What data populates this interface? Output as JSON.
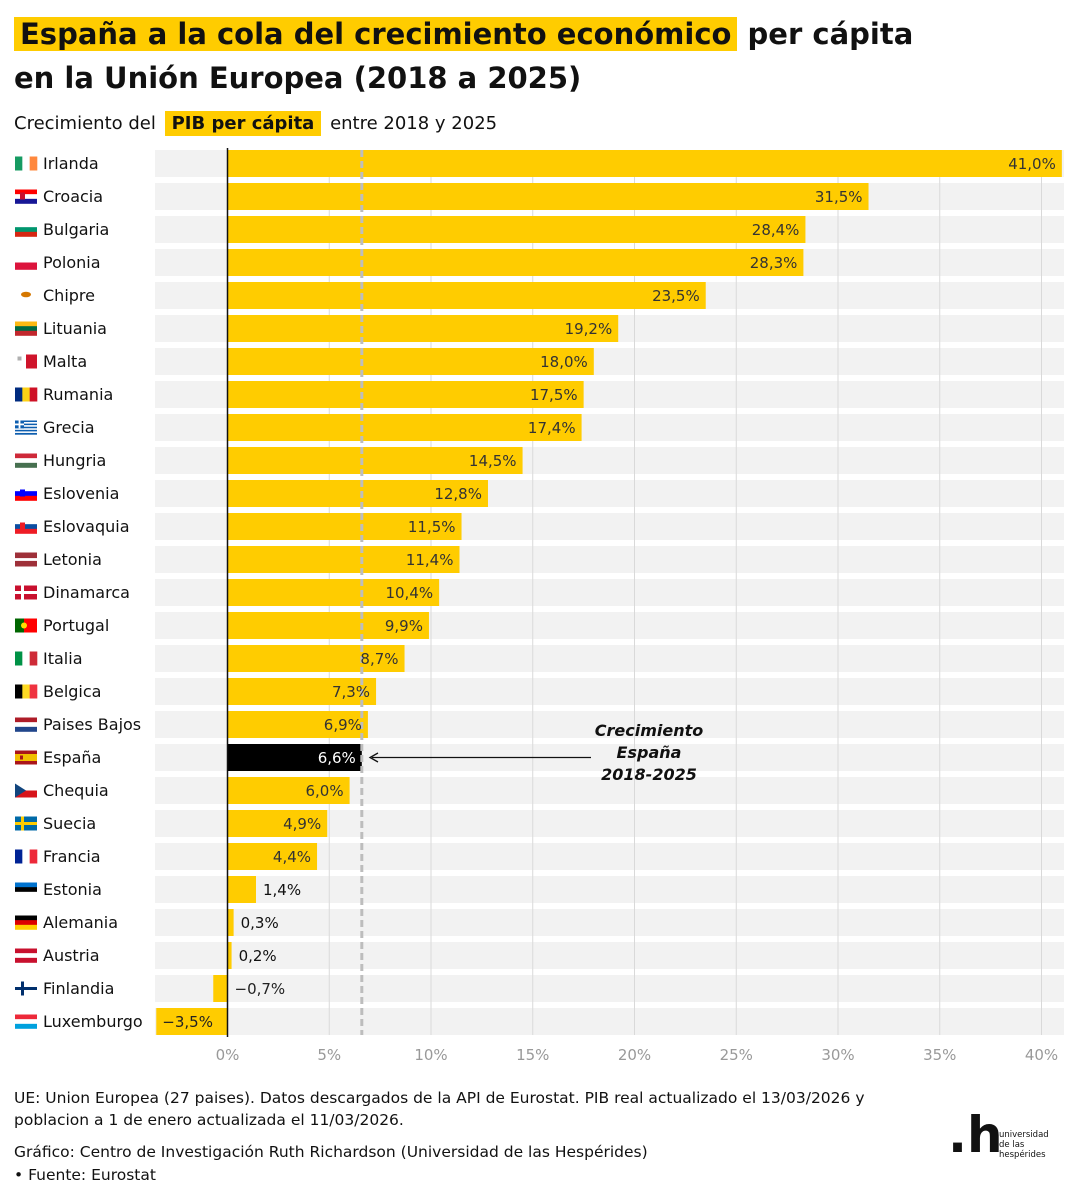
{
  "title": {
    "highlight": "España a la cola del crecimiento económico",
    "rest": "per cápita",
    "line2": "en la Unión Europea (2018 a 2025)"
  },
  "subtitle": {
    "before": "Crecimiento del",
    "highlight": "PIB per cápita",
    "after": "entre 2018 y 2025"
  },
  "colors": {
    "bar": "#ffcc00",
    "highlight_bar": "#000000",
    "row_bg": "#f2f2f2",
    "grid": "#d9d9d9",
    "reference": "#bdbdbd",
    "tick": "#999999"
  },
  "chart_data": {
    "type": "bar",
    "orientation": "horizontal",
    "title": "España a la cola del crecimiento económico per cápita en la Unión Europea (2018 a 2025)",
    "subtitle": "Crecimiento del PIB per cápita entre 2018 y 2025",
    "xlim": [
      -3.5,
      41.0
    ],
    "xticks": [
      0,
      5,
      10,
      15,
      20,
      25,
      30,
      35,
      40
    ],
    "xtick_labels": [
      "0%",
      "5%",
      "10%",
      "15%",
      "20%",
      "25%",
      "30%",
      "35%",
      "40%"
    ],
    "grid": true,
    "reference_line": {
      "value": 6.6,
      "style": "dashed"
    },
    "annotation": {
      "lines": [
        "Crecimiento",
        "España",
        "2018-2025"
      ],
      "points_to": "España"
    },
    "highlight": "España",
    "categories": [
      "Irlanda",
      "Croacia",
      "Bulgaria",
      "Polonia",
      "Chipre",
      "Lituania",
      "Malta",
      "Rumania",
      "Grecia",
      "Hungria",
      "Eslovenia",
      "Eslovaquia",
      "Letonia",
      "Dinamarca",
      "Portugal",
      "Italia",
      "Belgica",
      "Paises Bajos",
      "España",
      "Chequia",
      "Suecia",
      "Francia",
      "Estonia",
      "Alemania",
      "Austria",
      "Finlandia",
      "Luxemburgo"
    ],
    "values": [
      41.0,
      31.5,
      28.4,
      28.3,
      23.5,
      19.2,
      18.0,
      17.5,
      17.4,
      14.5,
      12.8,
      11.5,
      11.4,
      10.4,
      9.9,
      8.7,
      7.3,
      6.9,
      6.6,
      6.0,
      4.9,
      4.4,
      1.4,
      0.3,
      0.2,
      -0.7,
      -3.5
    ],
    "value_labels": [
      "41,0%",
      "31,5%",
      "28,4%",
      "28,3%",
      "23,5%",
      "19,2%",
      "18,0%",
      "17,5%",
      "17,4%",
      "14,5%",
      "12,8%",
      "11,5%",
      "11,4%",
      "10,4%",
      "9,9%",
      "8,7%",
      "7,3%",
      "6,9%",
      "6,6%",
      "6,0%",
      "4,9%",
      "4,4%",
      "1,4%",
      "0,3%",
      "0,2%",
      "−0,7%",
      "−3,5%"
    ]
  },
  "flags": [
    {
      "type": "v",
      "colors": [
        "#169b62",
        "#ffffff",
        "#ff883e"
      ]
    },
    {
      "type": "h",
      "colors": [
        "#ff0000",
        "#ffffff",
        "#171796"
      ],
      "emblem": "#c8102e"
    },
    {
      "type": "h",
      "colors": [
        "#ffffff",
        "#00966e",
        "#d62612"
      ]
    },
    {
      "type": "h",
      "colors": [
        "#ffffff",
        "#dc143c"
      ]
    },
    {
      "type": "cyprus",
      "colors": [
        "#ffffff",
        "#d57800"
      ]
    },
    {
      "type": "h",
      "colors": [
        "#fdb913",
        "#006a44",
        "#c1272d"
      ]
    },
    {
      "type": "malta",
      "colors": [
        "#ffffff",
        "#cf142b"
      ]
    },
    {
      "type": "v",
      "colors": [
        "#002b7f",
        "#fcd116",
        "#ce1126"
      ]
    },
    {
      "type": "greece",
      "colors": [
        "#0d5eaf",
        "#ffffff"
      ]
    },
    {
      "type": "h",
      "colors": [
        "#ce2939",
        "#ffffff",
        "#477050"
      ]
    },
    {
      "type": "h",
      "colors": [
        "#ffffff",
        "#0000ff",
        "#ff0000"
      ],
      "emblem": "#0000ff"
    },
    {
      "type": "h",
      "colors": [
        "#ffffff",
        "#0b4ea2",
        "#ee1c25"
      ],
      "emblem": "#ee1c25"
    },
    {
      "type": "latvia",
      "colors": [
        "#9e3039",
        "#ffffff"
      ]
    },
    {
      "type": "nordic",
      "colors": [
        "#c8102e",
        "#ffffff"
      ]
    },
    {
      "type": "portugal",
      "colors": [
        "#006600",
        "#ff0000"
      ]
    },
    {
      "type": "v",
      "colors": [
        "#009246",
        "#ffffff",
        "#ce2b37"
      ]
    },
    {
      "type": "v",
      "colors": [
        "#000000",
        "#fdda24",
        "#ef3340"
      ]
    },
    {
      "type": "h",
      "colors": [
        "#ae1c28",
        "#ffffff",
        "#21468b"
      ]
    },
    {
      "type": "spain",
      "colors": [
        "#aa151b",
        "#f1bf00"
      ]
    },
    {
      "type": "czech",
      "colors": [
        "#ffffff",
        "#d7141a",
        "#11457e"
      ]
    },
    {
      "type": "nordic",
      "colors": [
        "#006aa7",
        "#fecc00"
      ]
    },
    {
      "type": "v",
      "colors": [
        "#002395",
        "#ffffff",
        "#ed2939"
      ]
    },
    {
      "type": "h",
      "colors": [
        "#0072ce",
        "#000000",
        "#ffffff"
      ]
    },
    {
      "type": "h",
      "colors": [
        "#000000",
        "#dd0000",
        "#ffce00"
      ]
    },
    {
      "type": "h",
      "colors": [
        "#c8102e",
        "#ffffff",
        "#c8102e"
      ]
    },
    {
      "type": "nordic",
      "colors": [
        "#ffffff",
        "#002f6c"
      ]
    },
    {
      "type": "h",
      "colors": [
        "#ed2939",
        "#ffffff",
        "#00a1de"
      ]
    }
  ],
  "footnote": "UE: Union Europea (27 paises). Datos descargados de la API de Eurostat. PIB real actualizado el 13/03/2026 y poblacion a 1 de enero actualizada el 11/03/2026.",
  "credit": {
    "graphic": "Gráfico: Centro de Investigación Ruth Richardson (Universidad de las Hespérides)",
    "source": "• Fuente: Eurostat"
  },
  "logo": {
    "mark": ".h",
    "name_lines": [
      "universidad",
      "de las",
      "hespérides"
    ]
  }
}
